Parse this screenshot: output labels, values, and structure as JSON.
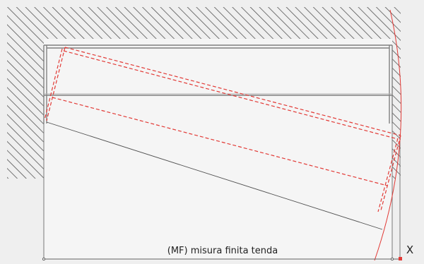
{
  "diagram": {
    "dimension_label": "(MF) misura finita tenda",
    "axis_marker_label": "X"
  },
  "colors": {
    "background": "#efefef",
    "wall_hatch": "#555555",
    "structure_line": "#808080",
    "guide_line": "#505050",
    "curtain_red": "#e23a36",
    "opening_fill": "#f5f5f5"
  }
}
